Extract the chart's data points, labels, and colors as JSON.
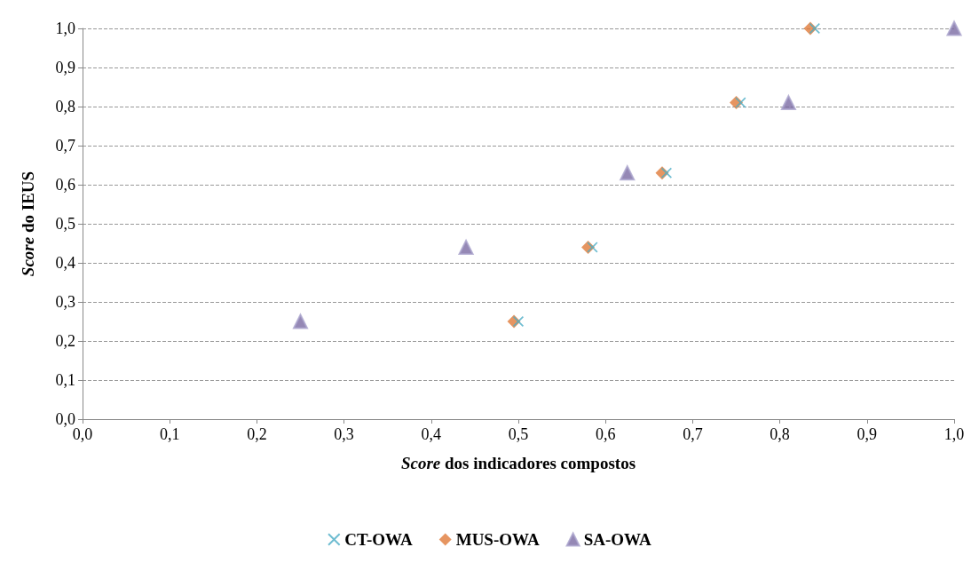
{
  "chart_data": {
    "type": "scatter",
    "xlabel": "Score dos indicadores compostos",
    "ylabel": "Score do IEUS",
    "xlim": [
      0,
      1
    ],
    "ylim": [
      0,
      1
    ],
    "xticks": [
      {
        "value": 0,
        "label": "0,0"
      },
      {
        "value": 0.1,
        "label": "0,1"
      },
      {
        "value": 0.2,
        "label": "0,2"
      },
      {
        "value": 0.3,
        "label": "0,3"
      },
      {
        "value": 0.4,
        "label": "0,4"
      },
      {
        "value": 0.5,
        "label": "0,5"
      },
      {
        "value": 0.6,
        "label": "0,6"
      },
      {
        "value": 0.7,
        "label": "0,7"
      },
      {
        "value": 0.8,
        "label": "0,8"
      },
      {
        "value": 0.9,
        "label": "0,9"
      },
      {
        "value": 1,
        "label": "1,0"
      }
    ],
    "yticks": [
      {
        "value": 0,
        "label": "0,0"
      },
      {
        "value": 0.1,
        "label": "0,1"
      },
      {
        "value": 0.2,
        "label": "0,2"
      },
      {
        "value": 0.3,
        "label": "0,3"
      },
      {
        "value": 0.4,
        "label": "0,4"
      },
      {
        "value": 0.5,
        "label": "0,5"
      },
      {
        "value": 0.6,
        "label": "0,6"
      },
      {
        "value": 0.7,
        "label": "0,7"
      },
      {
        "value": 0.8,
        "label": "0,8"
      },
      {
        "value": 0.9,
        "label": "0,9"
      },
      {
        "value": 1,
        "label": "1,0"
      }
    ],
    "grid": "y",
    "legend": "bottom",
    "series": [
      {
        "name": "CT-OWA",
        "color": "#4bacc6",
        "marker": "cross",
        "x": [
          0.5,
          0.585,
          0.67,
          0.755,
          0.84
        ],
        "values": [
          0.25,
          0.44,
          0.63,
          0.81,
          1.0
        ]
      },
      {
        "name": "MUS-OWA",
        "color": "#e07b39",
        "marker": "diamond",
        "x": [
          0.495,
          0.58,
          0.665,
          0.75,
          0.835
        ],
        "values": [
          0.25,
          0.44,
          0.63,
          0.81,
          1.0
        ]
      },
      {
        "name": "SA-OWA",
        "color": "#7b6aa3",
        "marker": "triangle",
        "x": [
          0.25,
          0.44,
          0.625,
          0.81,
          1.0
        ],
        "values": [
          0.25,
          0.44,
          0.63,
          0.81,
          1.0
        ]
      }
    ]
  }
}
